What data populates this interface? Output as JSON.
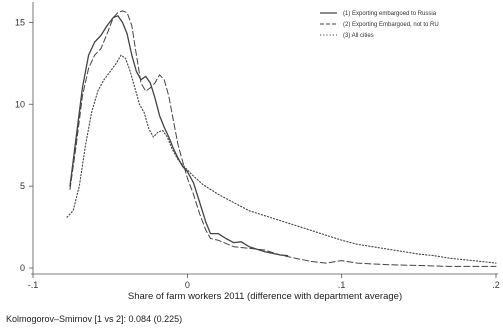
{
  "chart_data": {
    "type": "line",
    "xlabel": "Share of farm workers 2011  (difference with department average)",
    "ylabel": "",
    "xlim": [
      -0.1,
      0.2
    ],
    "ylim": [
      0,
      16
    ],
    "x_ticks": [
      -0.1,
      0,
      0.1,
      0.2
    ],
    "x_tick_labels": [
      "-.1",
      "0",
      ".1",
      ".2"
    ],
    "y_ticks": [
      0,
      5,
      10,
      15
    ],
    "y_tick_labels": [
      "0",
      "5",
      "10",
      "15"
    ],
    "legend_position": "top-right",
    "grid": false,
    "series": [
      {
        "name": "(1) Exporting embargoed to Russia",
        "style": "solid",
        "color": "#444444",
        "points": [
          [
            -0.076,
            5.0
          ],
          [
            -0.072,
            8.0
          ],
          [
            -0.068,
            11.0
          ],
          [
            -0.064,
            13.0
          ],
          [
            -0.06,
            13.8
          ],
          [
            -0.056,
            14.2
          ],
          [
            -0.052,
            14.8
          ],
          [
            -0.048,
            15.3
          ],
          [
            -0.045,
            15.4
          ],
          [
            -0.042,
            15.0
          ],
          [
            -0.039,
            14.3
          ],
          [
            -0.036,
            13.0
          ],
          [
            -0.033,
            12.0
          ],
          [
            -0.03,
            11.5
          ],
          [
            -0.027,
            11.7
          ],
          [
            -0.024,
            11.3
          ],
          [
            -0.021,
            10.4
          ],
          [
            -0.018,
            9.3
          ],
          [
            -0.015,
            8.6
          ],
          [
            -0.012,
            8.0
          ],
          [
            -0.009,
            7.3
          ],
          [
            -0.006,
            6.7
          ],
          [
            -0.003,
            6.2
          ],
          [
            0.0,
            5.9
          ],
          [
            0.004,
            5.2
          ],
          [
            0.008,
            4.0
          ],
          [
            0.012,
            2.8
          ],
          [
            0.015,
            2.1
          ],
          [
            0.02,
            2.1
          ],
          [
            0.025,
            1.8
          ],
          [
            0.03,
            1.55
          ],
          [
            0.035,
            1.6
          ],
          [
            0.04,
            1.3
          ],
          [
            0.05,
            1.0
          ],
          [
            0.06,
            0.8
          ],
          [
            0.065,
            0.75
          ]
        ]
      },
      {
        "name": "(2) Exporting Embargoed, not to RU",
        "style": "dashed",
        "color": "#444444",
        "points": [
          [
            -0.076,
            4.8
          ],
          [
            -0.072,
            7.5
          ],
          [
            -0.068,
            10.5
          ],
          [
            -0.064,
            12.2
          ],
          [
            -0.06,
            13.0
          ],
          [
            -0.056,
            13.4
          ],
          [
            -0.052,
            14.3
          ],
          [
            -0.048,
            15.3
          ],
          [
            -0.045,
            15.6
          ],
          [
            -0.042,
            15.7
          ],
          [
            -0.039,
            15.6
          ],
          [
            -0.036,
            14.8
          ],
          [
            -0.033,
            13.0
          ],
          [
            -0.03,
            11.3
          ],
          [
            -0.027,
            10.8
          ],
          [
            -0.024,
            11.0
          ],
          [
            -0.021,
            11.3
          ],
          [
            -0.018,
            11.8
          ],
          [
            -0.015,
            11.5
          ],
          [
            -0.012,
            10.5
          ],
          [
            -0.009,
            9.0
          ],
          [
            -0.006,
            7.5
          ],
          [
            -0.003,
            6.5
          ],
          [
            0.0,
            5.5
          ],
          [
            0.004,
            4.5
          ],
          [
            0.008,
            3.3
          ],
          [
            0.012,
            2.3
          ],
          [
            0.015,
            1.8
          ],
          [
            0.02,
            1.7
          ],
          [
            0.025,
            1.5
          ],
          [
            0.03,
            1.3
          ],
          [
            0.04,
            1.2
          ],
          [
            0.05,
            1.1
          ],
          [
            0.06,
            0.8
          ],
          [
            0.07,
            0.6
          ],
          [
            0.08,
            0.4
          ],
          [
            0.09,
            0.3
          ],
          [
            0.1,
            0.45
          ],
          [
            0.11,
            0.3
          ],
          [
            0.12,
            0.25
          ],
          [
            0.13,
            0.2
          ],
          [
            0.15,
            0.15
          ],
          [
            0.17,
            0.1
          ],
          [
            0.19,
            0.1
          ],
          [
            0.2,
            0.1
          ]
        ]
      },
      {
        "name": "(3) All cities",
        "style": "dotted",
        "color": "#444444",
        "points": [
          [
            -0.078,
            3.1
          ],
          [
            -0.074,
            3.5
          ],
          [
            -0.07,
            5.0
          ],
          [
            -0.066,
            7.5
          ],
          [
            -0.062,
            9.5
          ],
          [
            -0.058,
            10.8
          ],
          [
            -0.054,
            11.5
          ],
          [
            -0.05,
            12.0
          ],
          [
            -0.046,
            12.5
          ],
          [
            -0.043,
            13.0
          ],
          [
            -0.04,
            12.8
          ],
          [
            -0.037,
            12.0
          ],
          [
            -0.034,
            11.0
          ],
          [
            -0.031,
            10.0
          ],
          [
            -0.028,
            9.5
          ],
          [
            -0.025,
            8.5
          ],
          [
            -0.022,
            8.0
          ],
          [
            -0.019,
            8.3
          ],
          [
            -0.016,
            8.4
          ],
          [
            -0.013,
            8.0
          ],
          [
            -0.01,
            7.3
          ],
          [
            -0.006,
            6.6
          ],
          [
            -0.002,
            6.2
          ],
          [
            0.003,
            5.7
          ],
          [
            0.01,
            5.1
          ],
          [
            0.02,
            4.5
          ],
          [
            0.03,
            4.0
          ],
          [
            0.04,
            3.5
          ],
          [
            0.05,
            3.2
          ],
          [
            0.06,
            2.9
          ],
          [
            0.07,
            2.6
          ],
          [
            0.08,
            2.3
          ],
          [
            0.09,
            2.0
          ],
          [
            0.1,
            1.7
          ],
          [
            0.11,
            1.45
          ],
          [
            0.12,
            1.3
          ],
          [
            0.13,
            1.15
          ],
          [
            0.14,
            1.0
          ],
          [
            0.15,
            0.85
          ],
          [
            0.16,
            0.75
          ],
          [
            0.17,
            0.6
          ],
          [
            0.18,
            0.5
          ],
          [
            0.19,
            0.4
          ],
          [
            0.2,
            0.3
          ]
        ]
      }
    ]
  },
  "note": "Kolmogorov–Smirnov [1 vs 2]: 0.084 (0.225)"
}
